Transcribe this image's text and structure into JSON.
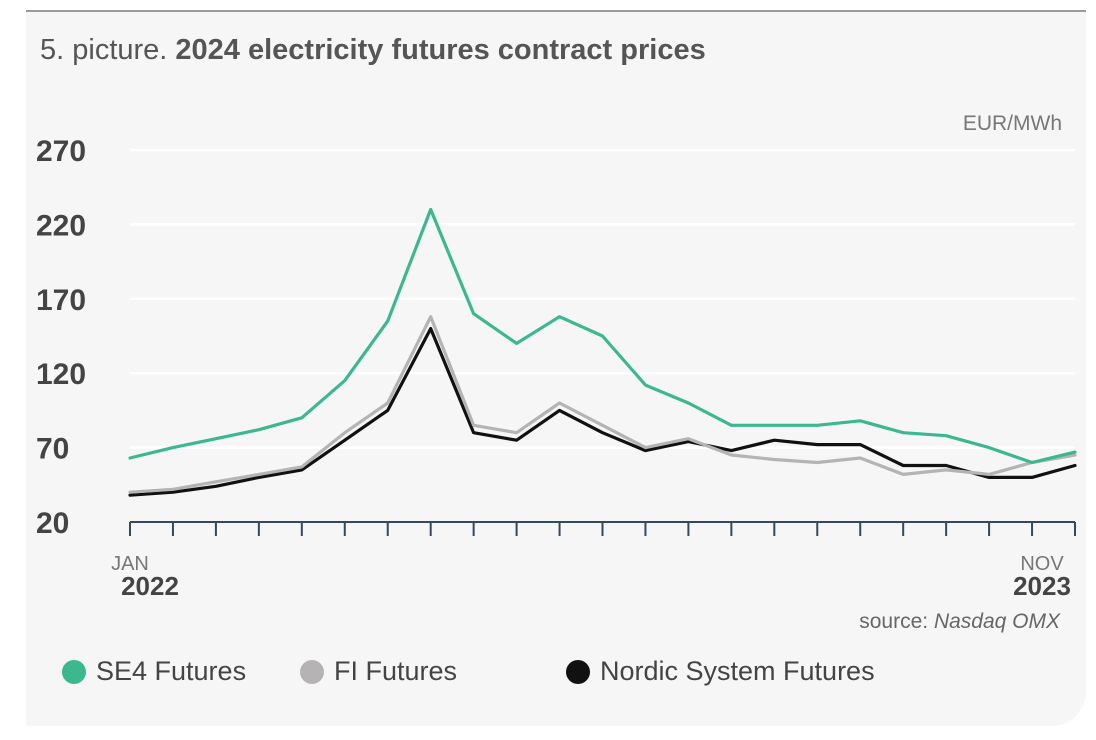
{
  "title": {
    "prefix": "5. picture.",
    "main": "2024 electricity futures contract prices"
  },
  "unit": "EUR/MWh",
  "source": {
    "prefix": "source:",
    "name": "Nasdaq OMX"
  },
  "colors": {
    "se4": "#3cb88f",
    "fi": "#b5b3b3",
    "nordic": "#111111",
    "axis": "#34495e",
    "grid": "#ffffff"
  },
  "legend": [
    {
      "label": "SE4 Futures",
      "color": "#3cb88f"
    },
    {
      "label": "FI Futures",
      "color": "#b5b3b3"
    },
    {
      "label": "Nordic System Futures",
      "color": "#111111"
    }
  ],
  "chart_data": {
    "type": "line",
    "title": "2024 electricity futures contract prices",
    "ylabel": "EUR/MWh",
    "xlabel": "",
    "ylim": [
      20,
      270
    ],
    "yticks": [
      20,
      70,
      120,
      170,
      220,
      270
    ],
    "x_tick_labels": [
      {
        "month": "JAN",
        "year": "2022",
        "x": "2022-01"
      },
      {
        "month": "NOV",
        "year": "2023",
        "x": "2023-11"
      }
    ],
    "grid": true,
    "legend_position": "bottom",
    "x": [
      "2022-01",
      "2022-02",
      "2022-03",
      "2022-04",
      "2022-05",
      "2022-06",
      "2022-07",
      "2022-08",
      "2022-09",
      "2022-10",
      "2022-11",
      "2022-12",
      "2023-01",
      "2023-02",
      "2023-03",
      "2023-04",
      "2023-05",
      "2023-06",
      "2023-07",
      "2023-08",
      "2023-09",
      "2023-10",
      "2023-11"
    ],
    "series": [
      {
        "name": "SE4 Futures",
        "values": [
          63,
          70,
          76,
          82,
          90,
          115,
          155,
          230,
          160,
          140,
          158,
          145,
          112,
          100,
          85,
          85,
          85,
          88,
          80,
          78,
          70,
          60,
          67
        ]
      },
      {
        "name": "FI Futures",
        "values": [
          40,
          42,
          47,
          52,
          57,
          80,
          100,
          158,
          85,
          80,
          100,
          85,
          70,
          76,
          65,
          62,
          60,
          63,
          52,
          55,
          52,
          60,
          65
        ]
      },
      {
        "name": "Nordic System Futures",
        "values": [
          38,
          40,
          44,
          50,
          55,
          75,
          95,
          150,
          80,
          75,
          95,
          80,
          68,
          74,
          68,
          75,
          72,
          72,
          58,
          58,
          50,
          50,
          58
        ]
      }
    ]
  }
}
